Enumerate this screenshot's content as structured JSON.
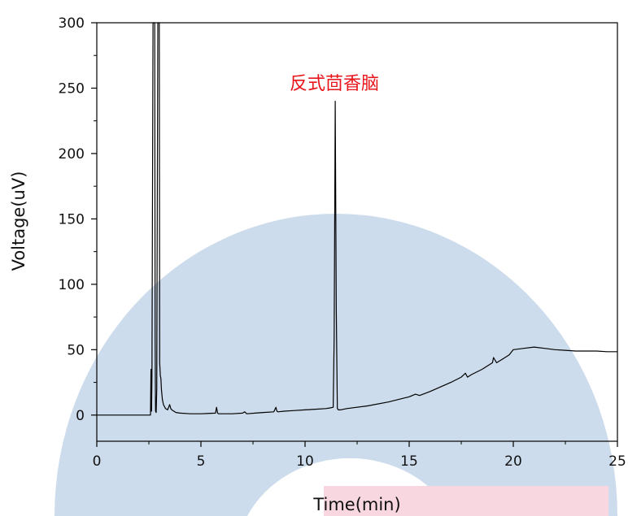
{
  "chart_data": {
    "type": "line",
    "xlabel": "Time(min)",
    "ylabel": "Voltage(uV)",
    "xlim": [
      0,
      25
    ],
    "ylim": [
      -20,
      300
    ],
    "x_ticks": [
      0,
      5,
      10,
      15,
      20,
      25
    ],
    "y_ticks": [
      0,
      50,
      100,
      150,
      200,
      250,
      300
    ],
    "grid": false,
    "legend": "none",
    "annotation": {
      "text": "反式茴香脑",
      "color": "#e8151b"
    },
    "series": [
      {
        "color": "#000000",
        "x": [
          0,
          2.5,
          2.58,
          2.6,
          2.63,
          2.65,
          2.7,
          2.73,
          2.78,
          2.8,
          2.82,
          2.85,
          2.88,
          2.93,
          2.97,
          3.0,
          3.02,
          3.05,
          3.08,
          3.1,
          3.15,
          3.2,
          3.3,
          3.4,
          3.5,
          3.55,
          3.6,
          3.7,
          3.8,
          4.0,
          4.5,
          5.0,
          5.7,
          5.75,
          5.8,
          5.85,
          6.0,
          6.5,
          7.0,
          7.1,
          7.2,
          7.6,
          8.0,
          8.5,
          8.6,
          8.65,
          8.7,
          9.0,
          9.5,
          10.0,
          10.5,
          11.0,
          11.2,
          11.35,
          11.4,
          11.45,
          11.5,
          11.55,
          11.6,
          11.7,
          12.0,
          13.0,
          14.0,
          15.0,
          15.3,
          15.5,
          16.0,
          17.0,
          17.5,
          17.7,
          17.8,
          18.0,
          18.5,
          19.0,
          19.05,
          19.2,
          19.5,
          19.8,
          20.0,
          20.5,
          21.0,
          21.5,
          22.0,
          22.5,
          23.0,
          23.5,
          24.0,
          24.5,
          25.0
        ],
        "y": [
          0,
          0,
          0,
          35,
          3,
          30,
          300,
          300,
          300,
          60,
          3,
          2,
          20,
          300,
          300,
          300,
          40,
          30,
          28,
          20,
          12,
          8,
          5,
          4,
          8,
          5,
          4,
          3,
          2,
          1.5,
          1,
          1,
          1.5,
          6,
          1.5,
          1,
          1,
          1,
          1.5,
          2.5,
          1,
          1.5,
          2,
          2.5,
          6,
          3,
          2.5,
          3,
          3.5,
          4,
          4.5,
          5,
          5.5,
          6,
          60,
          240,
          80,
          5,
          4,
          4,
          5,
          7,
          10,
          14,
          16,
          15,
          18,
          25,
          29,
          32,
          29,
          31,
          35,
          40,
          44,
          40,
          43,
          46,
          50,
          51,
          52,
          51,
          50,
          49.5,
          49,
          49,
          49,
          48.5,
          48.5
        ]
      }
    ]
  }
}
